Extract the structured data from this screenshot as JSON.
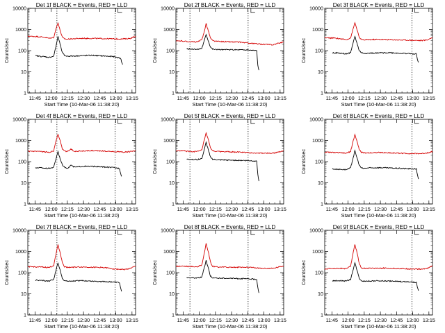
{
  "figure": {
    "background": "#ffffff",
    "line_colors": {
      "events": "#000000",
      "lld": "#d40000"
    }
  },
  "chart_data": [
    {
      "type": "line",
      "panel": "det-1f",
      "title": "Det 1f BLACK = Events, RED = LLD",
      "xlabel": "Start Time (10-Mar-06 11:38:20)",
      "ylabel": "Counts/sec",
      "xticks": [
        "11:45",
        "12:00",
        "12:15",
        "12:30",
        "12:45",
        "13:00",
        "13:15"
      ],
      "yticks": [
        "1",
        "10",
        "100",
        "1000",
        "10000"
      ],
      "ylim": [
        1,
        10000
      ],
      "yscale": "log",
      "x_unit": "minutes after 11:38:20",
      "xlim": [
        0,
        100
      ],
      "vlines": [
        27,
        81
      ],
      "series": [
        {
          "name": "LLD",
          "color": "#d40000",
          "x": [
            0,
            10,
            15,
            20,
            24,
            26,
            28,
            30,
            32,
            34,
            36,
            40,
            50,
            60,
            70,
            80,
            90,
            95,
            100
          ],
          "y": [
            480,
            460,
            430,
            380,
            420,
            1000,
            2100,
            900,
            430,
            360,
            350,
            360,
            380,
            380,
            370,
            360,
            360,
            380,
            480
          ]
        },
        {
          "name": "Events",
          "color": "#000000",
          "x": [
            7,
            10,
            15,
            20,
            24,
            26,
            28,
            30,
            32,
            34,
            36,
            40,
            50,
            60,
            70,
            80,
            85,
            86,
            87,
            88
          ],
          "y": [
            58,
            55,
            52,
            48,
            55,
            150,
            460,
            200,
            80,
            60,
            55,
            55,
            58,
            60,
            56,
            52,
            45,
            45,
            30,
            22
          ]
        }
      ]
    },
    {
      "type": "line",
      "panel": "det-2f",
      "title": "Det 2f BLACK = Events, RED = LLD",
      "xlabel": "Start Time (10-Mar-06 11:38:20)",
      "ylabel": "Counts/sec",
      "xticks": [
        "11:45",
        "12:00",
        "12:15",
        "12:30",
        "12:45",
        "13:00",
        "13:15"
      ],
      "yticks": [
        "1",
        "10",
        "100",
        "1000",
        "10000"
      ],
      "ylim": [
        1,
        10000
      ],
      "yscale": "log",
      "x_unit": "minutes after 11:38:20",
      "xlim": [
        0,
        100
      ],
      "vlines": [
        13,
        67
      ],
      "series": [
        {
          "name": "LLD",
          "color": "#d40000",
          "x": [
            0,
            5,
            10,
            15,
            20,
            24,
            26,
            28,
            30,
            32,
            34,
            36,
            40,
            50,
            60,
            70,
            80,
            90,
            100
          ],
          "y": [
            280,
            290,
            270,
            260,
            260,
            320,
            700,
            1900,
            900,
            400,
            300,
            280,
            270,
            260,
            250,
            220,
            200,
            190,
            260
          ]
        },
        {
          "name": "Events",
          "color": "#000000",
          "x": [
            10,
            15,
            20,
            24,
            26,
            28,
            30,
            32,
            34,
            36,
            40,
            50,
            60,
            70,
            75,
            76,
            77
          ],
          "y": [
            120,
            118,
            115,
            130,
            260,
            600,
            300,
            150,
            120,
            115,
            112,
            110,
            110,
            105,
            100,
            20,
            12
          ]
        }
      ]
    },
    {
      "type": "line",
      "panel": "det-3f",
      "title": "Det 3f BLACK = Events, RED = LLD",
      "xlabel": "Start Time (10-Mar-06 11:38:20)",
      "ylabel": "Counts/sec",
      "xticks": [
        "11:45",
        "12:00",
        "12:15",
        "12:30",
        "12:45",
        "13:00",
        "13:15"
      ],
      "yticks": [
        "1",
        "10",
        "100",
        "1000",
        "10000"
      ],
      "ylim": [
        1,
        10000
      ],
      "yscale": "log",
      "x_unit": "minutes after 11:38:20",
      "xlim": [
        0,
        100
      ],
      "vlines": [
        81
      ],
      "series": [
        {
          "name": "LLD",
          "color": "#d40000",
          "x": [
            0,
            10,
            15,
            20,
            24,
            26,
            28,
            30,
            32,
            34,
            36,
            40,
            50,
            60,
            70,
            80,
            90,
            95,
            100
          ],
          "y": [
            400,
            390,
            360,
            330,
            400,
            900,
            2100,
            1000,
            420,
            340,
            320,
            330,
            340,
            330,
            320,
            310,
            300,
            320,
            420
          ]
        },
        {
          "name": "Events",
          "color": "#000000",
          "x": [
            7,
            10,
            15,
            20,
            24,
            26,
            28,
            30,
            32,
            34,
            36,
            40,
            50,
            60,
            70,
            80,
            85,
            86,
            87
          ],
          "y": [
            80,
            78,
            75,
            70,
            80,
            200,
            480,
            220,
            100,
            80,
            75,
            75,
            78,
            80,
            75,
            72,
            70,
            40,
            28
          ]
        }
      ]
    },
    {
      "type": "line",
      "panel": "det-4f",
      "title": "Det 4f BLACK = Events, RED = LLD",
      "xlabel": "Start Time (10-Mar-06 11:38:20)",
      "ylabel": "Counts/sec",
      "xticks": [
        "11:45",
        "12:00",
        "12:15",
        "12:30",
        "12:45",
        "13:00",
        "13:15"
      ],
      "yticks": [
        "1",
        "10",
        "100",
        "1000",
        "10000"
      ],
      "ylim": [
        1,
        10000
      ],
      "yscale": "log",
      "x_unit": "minutes after 11:38:20",
      "xlim": [
        0,
        100
      ],
      "vlines": [
        27,
        81
      ],
      "series": [
        {
          "name": "LLD",
          "color": "#d40000",
          "x": [
            0,
            10,
            15,
            20,
            24,
            26,
            28,
            30,
            32,
            34,
            36,
            38,
            40,
            42,
            44,
            50,
            60,
            70,
            80,
            90,
            100
          ],
          "y": [
            310,
            300,
            290,
            280,
            320,
            900,
            2000,
            1000,
            400,
            320,
            300,
            330,
            400,
            330,
            310,
            320,
            330,
            320,
            300,
            280,
            320
          ]
        },
        {
          "name": "Events",
          "color": "#000000",
          "x": [
            7,
            10,
            15,
            20,
            24,
            26,
            28,
            30,
            32,
            34,
            36,
            38,
            40,
            42,
            44,
            50,
            60,
            70,
            80,
            85,
            86,
            87
          ],
          "y": [
            50,
            52,
            50,
            48,
            55,
            130,
            300,
            140,
            70,
            55,
            50,
            52,
            70,
            58,
            55,
            60,
            60,
            56,
            52,
            48,
            30,
            20
          ]
        }
      ]
    },
    {
      "type": "line",
      "panel": "det-5f",
      "title": "Det 5f BLACK = Events, RED = LLD",
      "xlabel": "Start Time (10-Mar-06 11:38:20)",
      "ylabel": "Counts/sec",
      "xticks": [
        "11:45",
        "12:00",
        "12:15",
        "12:30",
        "12:45",
        "13:00",
        "13:15"
      ],
      "yticks": [
        "1",
        "10",
        "100",
        "1000",
        "10000"
      ],
      "ylim": [
        1,
        10000
      ],
      "yscale": "log",
      "x_unit": "minutes after 11:38:20",
      "xlim": [
        0,
        100
      ],
      "vlines": [
        13,
        67
      ],
      "series": [
        {
          "name": "LLD",
          "color": "#d40000",
          "x": [
            0,
            5,
            10,
            15,
            20,
            24,
            26,
            28,
            30,
            32,
            34,
            36,
            40,
            50,
            60,
            70,
            80,
            90,
            100
          ],
          "y": [
            320,
            330,
            310,
            300,
            300,
            350,
            900,
            2200,
            1100,
            450,
            330,
            310,
            300,
            290,
            280,
            260,
            250,
            250,
            330
          ]
        },
        {
          "name": "Events",
          "color": "#000000",
          "x": [
            10,
            15,
            20,
            24,
            26,
            28,
            30,
            32,
            34,
            36,
            40,
            50,
            60,
            70,
            75,
            76,
            77
          ],
          "y": [
            130,
            128,
            125,
            140,
            320,
            800,
            380,
            170,
            130,
            125,
            120,
            118,
            115,
            110,
            105,
            25,
            12
          ]
        }
      ]
    },
    {
      "type": "line",
      "panel": "det-6f",
      "title": "Det 6f BLACK = Events, RED = LLD",
      "xlabel": "Start Time (10-Mar-06 11:38:20)",
      "ylabel": "Counts/sec",
      "xticks": [
        "11:45",
        "12:00",
        "12:15",
        "12:30",
        "12:45",
        "13:00",
        "13:15"
      ],
      "yticks": [
        "1",
        "10",
        "100",
        "1000",
        "10000"
      ],
      "ylim": [
        1,
        10000
      ],
      "yscale": "log",
      "x_unit": "minutes after 11:38:20",
      "xlim": [
        0,
        100
      ],
      "vlines": [
        81
      ],
      "series": [
        {
          "name": "LLD",
          "color": "#d40000",
          "x": [
            0,
            10,
            15,
            20,
            24,
            26,
            28,
            30,
            32,
            34,
            36,
            40,
            50,
            60,
            70,
            80,
            90,
            95,
            100
          ],
          "y": [
            280,
            270,
            260,
            250,
            300,
            800,
            1900,
            900,
            380,
            280,
            260,
            260,
            270,
            260,
            250,
            240,
            240,
            260,
            300
          ]
        },
        {
          "name": "Events",
          "color": "#000000",
          "x": [
            7,
            10,
            15,
            20,
            24,
            26,
            28,
            30,
            32,
            34,
            36,
            40,
            50,
            60,
            70,
            80,
            85,
            86,
            87
          ],
          "y": [
            45,
            44,
            43,
            42,
            50,
            130,
            320,
            150,
            70,
            50,
            48,
            50,
            52,
            50,
            48,
            46,
            45,
            25,
            15
          ]
        }
      ]
    },
    {
      "type": "line",
      "panel": "det-7f",
      "title": "Det 7f BLACK = Events, RED = LLD",
      "xlabel": "Start Time (10-Mar-06 11:38:20)",
      "ylabel": "Counts/sec",
      "xticks": [
        "11:45",
        "12:00",
        "12:15",
        "12:30",
        "12:45",
        "13:00",
        "13:15"
      ],
      "yticks": [
        "1",
        "10",
        "100",
        "1000",
        "10000"
      ],
      "ylim": [
        1,
        10000
      ],
      "yscale": "log",
      "x_unit": "minutes after 11:38:20",
      "xlim": [
        0,
        100
      ],
      "vlines": [
        27,
        81
      ],
      "series": [
        {
          "name": "LLD",
          "color": "#d40000",
          "x": [
            0,
            10,
            15,
            20,
            24,
            26,
            28,
            30,
            32,
            34,
            36,
            40,
            50,
            60,
            70,
            80,
            90,
            95,
            100
          ],
          "y": [
            190,
            185,
            180,
            175,
            220,
            700,
            2100,
            900,
            300,
            190,
            180,
            180,
            185,
            180,
            175,
            150,
            140,
            160,
            200
          ]
        },
        {
          "name": "Events",
          "color": "#000000",
          "x": [
            7,
            10,
            15,
            20,
            24,
            26,
            28,
            30,
            32,
            34,
            36,
            40,
            50,
            60,
            70,
            80,
            85,
            86,
            87
          ],
          "y": [
            45,
            43,
            42,
            40,
            48,
            120,
            290,
            130,
            55,
            42,
            40,
            40,
            42,
            40,
            38,
            36,
            34,
            20,
            13
          ]
        }
      ]
    },
    {
      "type": "line",
      "panel": "det-8f",
      "title": "Det 8f BLACK = Events, RED = LLD",
      "xlabel": "Start Time (10-Mar-06 11:38:20)",
      "ylabel": "Counts/sec",
      "xticks": [
        "11:45",
        "12:00",
        "12:15",
        "12:30",
        "12:45",
        "13:00",
        "13:15"
      ],
      "yticks": [
        "1",
        "10",
        "100",
        "1000",
        "10000"
      ],
      "ylim": [
        1,
        10000
      ],
      "yscale": "log",
      "x_unit": "minutes after 11:38:20",
      "xlim": [
        0,
        100
      ],
      "vlines": [
        13,
        67
      ],
      "series": [
        {
          "name": "LLD",
          "color": "#d40000",
          "x": [
            0,
            5,
            10,
            15,
            20,
            24,
            26,
            28,
            30,
            32,
            34,
            36,
            40,
            50,
            60,
            70,
            80,
            90,
            100
          ],
          "y": [
            200,
            205,
            200,
            195,
            190,
            230,
            700,
            2300,
            1000,
            320,
            200,
            190,
            185,
            180,
            180,
            175,
            160,
            160,
            210
          ]
        },
        {
          "name": "Events",
          "color": "#000000",
          "x": [
            10,
            15,
            20,
            24,
            26,
            28,
            30,
            32,
            34,
            36,
            40,
            50,
            60,
            70,
            75,
            76,
            77
          ],
          "y": [
            58,
            57,
            56,
            62,
            150,
            380,
            170,
            70,
            58,
            55,
            55,
            54,
            52,
            50,
            48,
            20,
            11
          ]
        }
      ]
    },
    {
      "type": "line",
      "panel": "det-9f",
      "title": "Det 9f BLACK = Events, RED = LLD",
      "xlabel": "Start Time (10-Mar-06 11:38:20)",
      "ylabel": "Counts/sec",
      "xticks": [
        "11:45",
        "12:00",
        "12:15",
        "12:30",
        "12:45",
        "13:00",
        "13:15"
      ],
      "yticks": [
        "1",
        "10",
        "100",
        "1000",
        "10000"
      ],
      "ylim": [
        1,
        10000
      ],
      "yscale": "log",
      "x_unit": "minutes after 11:38:20",
      "xlim": [
        0,
        100
      ],
      "vlines": [
        81
      ],
      "series": [
        {
          "name": "LLD",
          "color": "#d40000",
          "x": [
            0,
            10,
            15,
            20,
            24,
            26,
            28,
            30,
            32,
            34,
            36,
            40,
            50,
            60,
            70,
            80,
            90,
            95,
            100
          ],
          "y": [
            150,
            160,
            160,
            155,
            200,
            700,
            2100,
            900,
            280,
            170,
            160,
            160,
            165,
            160,
            155,
            150,
            145,
            160,
            210
          ]
        },
        {
          "name": "Events",
          "color": "#000000",
          "x": [
            7,
            10,
            15,
            20,
            24,
            26,
            28,
            30,
            32,
            34,
            36,
            40,
            50,
            60,
            70,
            80,
            85,
            86,
            87
          ],
          "y": [
            40,
            42,
            42,
            40,
            48,
            120,
            290,
            130,
            55,
            42,
            40,
            40,
            41,
            40,
            38,
            36,
            34,
            20,
            14
          ]
        }
      ]
    }
  ]
}
